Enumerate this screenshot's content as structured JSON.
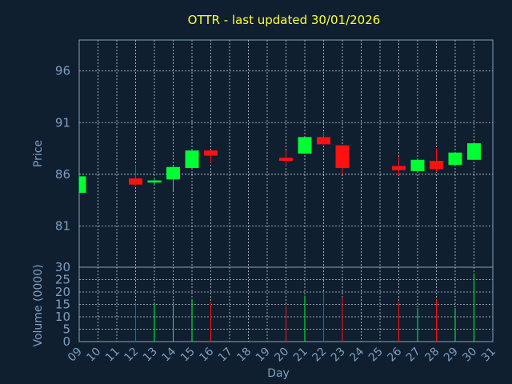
{
  "chart_data": [
    {
      "type": "candlestick",
      "title": "OTTR - last updated 30/01/2026",
      "ylabel": "Price",
      "ylim": [
        77,
        99
      ],
      "yticks": [
        81,
        86,
        91,
        96
      ],
      "grid": true,
      "up_color": "#00ff33",
      "down_color": "#ff1111",
      "candles": [
        {
          "day": 9,
          "open": 84.2,
          "high": 85.9,
          "low": 84.2,
          "close": 85.8
        },
        {
          "day": 12,
          "open": 85.6,
          "high": 86.9,
          "low": 84.9,
          "close": 85.0
        },
        {
          "day": 13,
          "open": 85.2,
          "high": 85.5,
          "low": 85.0,
          "close": 85.4
        },
        {
          "day": 14,
          "open": 85.5,
          "high": 86.8,
          "low": 84.4,
          "close": 86.7
        },
        {
          "day": 15,
          "open": 86.6,
          "high": 88.3,
          "low": 86.6,
          "close": 88.3
        },
        {
          "day": 16,
          "open": 88.3,
          "high": 88.3,
          "low": 87.1,
          "close": 87.8
        },
        {
          "day": 20,
          "open": 87.6,
          "high": 88.3,
          "low": 86.8,
          "close": 87.3
        },
        {
          "day": 21,
          "open": 88.0,
          "high": 89.6,
          "low": 88.0,
          "close": 89.6
        },
        {
          "day": 22,
          "open": 89.6,
          "high": 90.1,
          "low": 88.9,
          "close": 88.9
        },
        {
          "day": 23,
          "open": 88.8,
          "high": 88.8,
          "low": 86.0,
          "close": 86.6
        },
        {
          "day": 26,
          "open": 86.8,
          "high": 87.7,
          "low": 85.9,
          "close": 86.4
        },
        {
          "day": 27,
          "open": 86.3,
          "high": 87.4,
          "low": 86.3,
          "close": 87.4
        },
        {
          "day": 28,
          "open": 87.3,
          "high": 88.5,
          "low": 86.2,
          "close": 86.5
        },
        {
          "day": 29,
          "open": 86.9,
          "high": 88.1,
          "low": 86.9,
          "close": 88.1
        },
        {
          "day": 30,
          "open": 87.4,
          "high": 89.1,
          "low": 87.4,
          "close": 89.0
        }
      ]
    },
    {
      "type": "bar",
      "ylabel": "Volume (0000)",
      "xlabel": "Day",
      "ylim": [
        0,
        30
      ],
      "yticks": [
        0,
        5,
        10,
        15,
        20,
        25,
        30
      ],
      "x_categories": [
        "09",
        "10",
        "11",
        "12",
        "13",
        "14",
        "15",
        "16",
        "17",
        "18",
        "19",
        "20",
        "21",
        "22",
        "23",
        "24",
        "25",
        "26",
        "27",
        "28",
        "29",
        "30",
        "31"
      ],
      "bars": [
        {
          "day": 12,
          "value": 16,
          "dir": "down"
        },
        {
          "day": 13,
          "value": 15,
          "dir": "up"
        },
        {
          "day": 14,
          "value": 16,
          "dir": "up"
        },
        {
          "day": 15,
          "value": 17,
          "dir": "up"
        },
        {
          "day": 16,
          "value": 16,
          "dir": "down"
        },
        {
          "day": 20,
          "value": 14.5,
          "dir": "down"
        },
        {
          "day": 21,
          "value": 18.5,
          "dir": "up"
        },
        {
          "day": 22,
          "value": 20,
          "dir": "down"
        },
        {
          "day": 23,
          "value": 18,
          "dir": "down"
        },
        {
          "day": 26,
          "value": 16,
          "dir": "down"
        },
        {
          "day": 27,
          "value": 13.5,
          "dir": "up"
        },
        {
          "day": 28,
          "value": 17,
          "dir": "down"
        },
        {
          "day": 29,
          "value": 13.5,
          "dir": "up"
        },
        {
          "day": 30,
          "value": 27.5,
          "dir": "up"
        }
      ]
    }
  ]
}
